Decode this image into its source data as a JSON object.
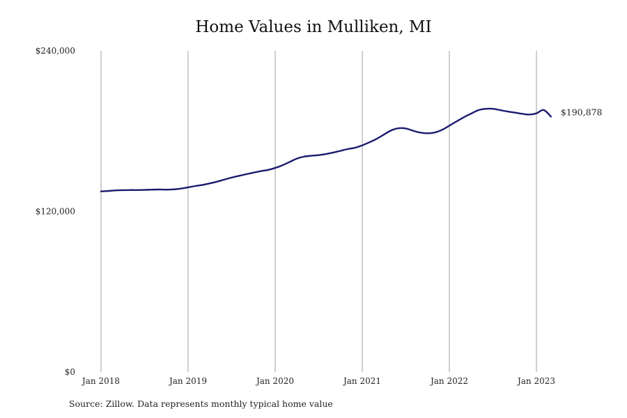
{
  "chart_data": {
    "type": "line",
    "title": "Home Values in Mulliken, MI",
    "xlabel": "",
    "ylabel": "",
    "y_ticks": [
      {
        "value": 0,
        "label": "$0"
      },
      {
        "value": 120000,
        "label": "$120,000"
      },
      {
        "value": 240000,
        "label": "$240,000"
      }
    ],
    "ylim": [
      0,
      240000
    ],
    "x_ticks": [
      {
        "value": "2018-01",
        "label": "Jan 2018"
      },
      {
        "value": "2019-01",
        "label": "Jan 2019"
      },
      {
        "value": "2020-01",
        "label": "Jan 2020"
      },
      {
        "value": "2021-01",
        "label": "Jan 2021"
      },
      {
        "value": "2022-01",
        "label": "Jan 2022"
      },
      {
        "value": "2023-01",
        "label": "Jan 2023"
      }
    ],
    "xlim": [
      "2018-01",
      "2023-03"
    ],
    "grid": "vertical",
    "line_color": "#1a1a6e",
    "grid_color": "#888888",
    "series": [
      {
        "x": [
          "2018-01",
          "2018-02",
          "2018-03",
          "2018-04",
          "2018-05",
          "2018-06",
          "2018-07",
          "2018-08",
          "2018-09",
          "2018-10",
          "2018-11",
          "2018-12",
          "2019-01",
          "2019-02",
          "2019-03",
          "2019-04",
          "2019-05",
          "2019-06",
          "2019-07",
          "2019-08",
          "2019-09",
          "2019-10",
          "2019-11",
          "2019-12",
          "2020-01",
          "2020-02",
          "2020-03",
          "2020-04",
          "2020-05",
          "2020-06",
          "2020-07",
          "2020-08",
          "2020-09",
          "2020-10",
          "2020-11",
          "2020-12",
          "2021-01",
          "2021-02",
          "2021-03",
          "2021-04",
          "2021-05",
          "2021-06",
          "2021-07",
          "2021-08",
          "2021-09",
          "2021-10",
          "2021-11",
          "2021-12",
          "2022-01",
          "2022-02",
          "2022-03",
          "2022-04",
          "2022-05",
          "2022-06",
          "2022-07",
          "2022-08",
          "2022-09",
          "2022-10",
          "2022-11",
          "2022-12",
          "2023-01",
          "2023-02",
          "2023-03"
        ],
        "values": [
          135000,
          135300,
          135700,
          135900,
          136000,
          136000,
          136100,
          136300,
          136400,
          136300,
          136500,
          137100,
          138000,
          139000,
          139800,
          141000,
          142300,
          143800,
          145300,
          146600,
          147800,
          149000,
          150100,
          151000,
          152500,
          154500,
          157000,
          159500,
          161000,
          161600,
          162100,
          162900,
          164000,
          165300,
          166600,
          167600,
          169400,
          171700,
          174300,
          177500,
          180600,
          182200,
          182000,
          180300,
          178900,
          178400,
          179000,
          181000,
          184100,
          187300,
          190400,
          193100,
          195700,
          196700,
          196700,
          195700,
          194700,
          193900,
          193000,
          192400,
          193300,
          195800,
          190878
        ]
      }
    ],
    "end_label": "$190,878"
  },
  "footer": {
    "source": "Source: Zillow. Data represents monthly typical home value"
  }
}
